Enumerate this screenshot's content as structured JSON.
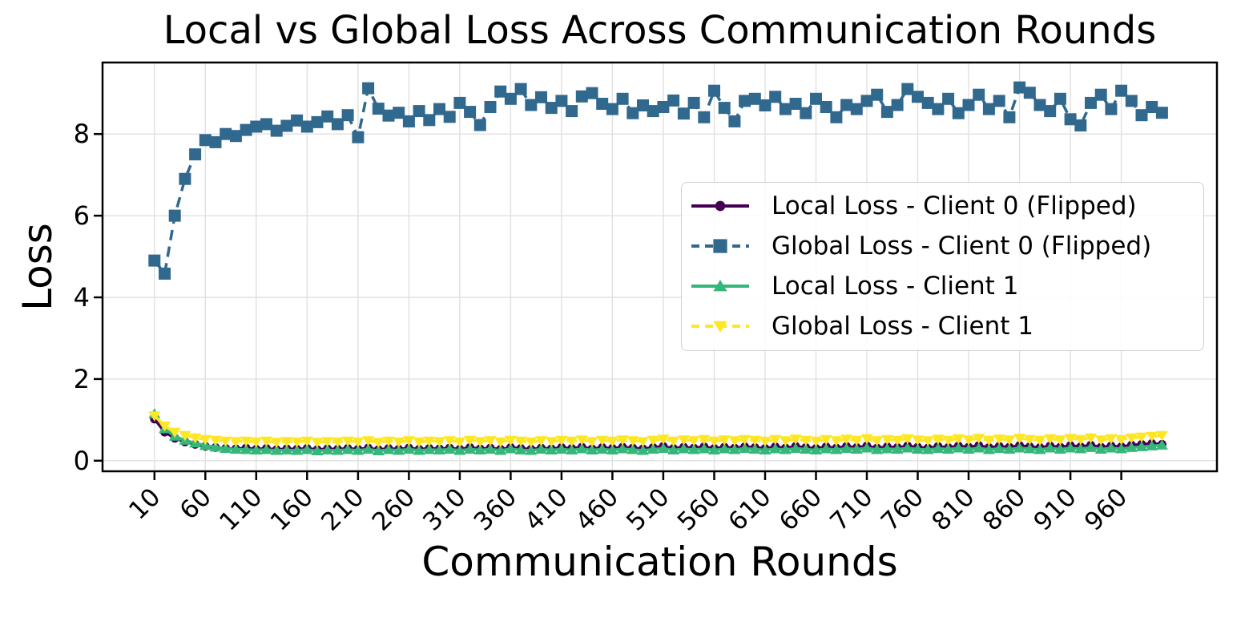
{
  "chart_data": {
    "type": "line",
    "title": "Local vs Global Loss Across Communication Rounds",
    "xlabel": "Communication Rounds",
    "ylabel": "Loss",
    "grid": true,
    "legend_position": "center right",
    "xlim": [
      -41,
      1054
    ],
    "ylim": [
      -0.26,
      9.75
    ],
    "x_ticks": [
      10,
      60,
      110,
      160,
      210,
      260,
      310,
      360,
      410,
      460,
      510,
      560,
      610,
      660,
      710,
      760,
      810,
      860,
      910,
      960
    ],
    "y_ticks": [
      0,
      2,
      4,
      6,
      8
    ],
    "axis_color": "#000000",
    "grid_color": "#e0e0e0",
    "x": [
      10,
      20,
      30,
      40,
      50,
      60,
      70,
      80,
      90,
      100,
      110,
      120,
      130,
      140,
      150,
      160,
      170,
      180,
      190,
      200,
      210,
      220,
      230,
      240,
      250,
      260,
      270,
      280,
      290,
      300,
      310,
      320,
      330,
      340,
      350,
      360,
      370,
      380,
      390,
      400,
      410,
      420,
      430,
      440,
      450,
      460,
      470,
      480,
      490,
      500,
      510,
      520,
      530,
      540,
      550,
      560,
      570,
      580,
      590,
      600,
      610,
      620,
      630,
      640,
      650,
      660,
      670,
      680,
      690,
      700,
      710,
      720,
      730,
      740,
      750,
      760,
      770,
      780,
      790,
      800,
      810,
      820,
      830,
      840,
      850,
      860,
      870,
      880,
      890,
      900,
      910,
      920,
      930,
      940,
      950,
      960,
      970,
      980,
      990,
      1000
    ],
    "series": [
      {
        "name": "Local Loss - Client 0 (Flipped)",
        "color": "#440154",
        "line_style": "solid",
        "marker": "circle",
        "values": [
          1.02,
          0.7,
          0.55,
          0.46,
          0.4,
          0.35,
          0.32,
          0.3,
          0.29,
          0.31,
          0.28,
          0.3,
          0.27,
          0.29,
          0.28,
          0.3,
          0.27,
          0.29,
          0.28,
          0.3,
          0.28,
          0.31,
          0.27,
          0.3,
          0.28,
          0.31,
          0.28,
          0.3,
          0.29,
          0.31,
          0.28,
          0.32,
          0.29,
          0.31,
          0.28,
          0.32,
          0.3,
          0.28,
          0.31,
          0.29,
          0.32,
          0.3,
          0.33,
          0.29,
          0.32,
          0.3,
          0.33,
          0.31,
          0.29,
          0.32,
          0.35,
          0.3,
          0.33,
          0.31,
          0.34,
          0.3,
          0.33,
          0.31,
          0.34,
          0.32,
          0.3,
          0.34,
          0.31,
          0.35,
          0.32,
          0.3,
          0.34,
          0.31,
          0.35,
          0.32,
          0.36,
          0.31,
          0.34,
          0.32,
          0.36,
          0.33,
          0.31,
          0.35,
          0.32,
          0.36,
          0.33,
          0.37,
          0.32,
          0.35,
          0.33,
          0.37,
          0.34,
          0.32,
          0.36,
          0.33,
          0.37,
          0.34,
          0.38,
          0.33,
          0.36,
          0.34,
          0.38,
          0.4,
          0.42,
          0.4
        ]
      },
      {
        "name": "Global Loss - Client 0 (Flipped)",
        "color": "#31688e",
        "line_style": "dashed",
        "marker": "square",
        "values": [
          4.9,
          4.58,
          6.0,
          6.9,
          7.5,
          7.85,
          7.8,
          8.0,
          7.95,
          8.1,
          8.18,
          8.24,
          8.08,
          8.2,
          8.33,
          8.18,
          8.29,
          8.43,
          8.24,
          8.46,
          7.92,
          9.12,
          8.62,
          8.45,
          8.52,
          8.31,
          8.56,
          8.34,
          8.61,
          8.42,
          8.76,
          8.54,
          8.22,
          8.66,
          9.04,
          8.86,
          9.1,
          8.71,
          8.9,
          8.64,
          8.81,
          8.56,
          8.92,
          9.0,
          8.74,
          8.61,
          8.86,
          8.51,
          8.7,
          8.56,
          8.66,
          8.82,
          8.5,
          8.76,
          8.41,
          9.06,
          8.64,
          8.31,
          8.81,
          8.86,
          8.7,
          8.91,
          8.61,
          8.74,
          8.51,
          8.86,
          8.66,
          8.41,
          8.71,
          8.61,
          8.81,
          8.96,
          8.54,
          8.71,
          9.1,
          8.91,
          8.76,
          8.61,
          8.86,
          8.51,
          8.71,
          8.96,
          8.61,
          8.81,
          8.41,
          9.14,
          9.01,
          8.71,
          8.56,
          8.86,
          8.36,
          8.21,
          8.76,
          8.96,
          8.61,
          9.06,
          8.81,
          8.46,
          8.66,
          8.52
        ]
      },
      {
        "name": "Local Loss - Client 1",
        "color": "#35b779",
        "line_style": "solid",
        "marker": "triangle-up",
        "values": [
          1.15,
          0.78,
          0.6,
          0.5,
          0.43,
          0.37,
          0.33,
          0.3,
          0.28,
          0.27,
          0.26,
          0.27,
          0.25,
          0.26,
          0.25,
          0.27,
          0.24,
          0.26,
          0.25,
          0.27,
          0.25,
          0.28,
          0.24,
          0.27,
          0.25,
          0.28,
          0.25,
          0.27,
          0.26,
          0.28,
          0.25,
          0.28,
          0.26,
          0.28,
          0.25,
          0.29,
          0.26,
          0.25,
          0.28,
          0.26,
          0.28,
          0.26,
          0.29,
          0.26,
          0.28,
          0.26,
          0.29,
          0.27,
          0.25,
          0.28,
          0.3,
          0.26,
          0.29,
          0.27,
          0.29,
          0.26,
          0.29,
          0.27,
          0.3,
          0.28,
          0.26,
          0.29,
          0.27,
          0.3,
          0.28,
          0.26,
          0.29,
          0.27,
          0.3,
          0.28,
          0.31,
          0.27,
          0.29,
          0.28,
          0.31,
          0.28,
          0.27,
          0.3,
          0.28,
          0.31,
          0.28,
          0.31,
          0.27,
          0.3,
          0.28,
          0.31,
          0.29,
          0.27,
          0.31,
          0.28,
          0.31,
          0.29,
          0.32,
          0.28,
          0.31,
          0.29,
          0.32,
          0.34,
          0.36,
          0.38
        ]
      },
      {
        "name": "Global Loss - Client 1",
        "color": "#fde725",
        "line_style": "dashed",
        "marker": "triangle-down",
        "values": [
          1.1,
          0.85,
          0.7,
          0.62,
          0.56,
          0.52,
          0.5,
          0.48,
          0.47,
          0.48,
          0.46,
          0.48,
          0.45,
          0.47,
          0.46,
          0.48,
          0.45,
          0.47,
          0.46,
          0.48,
          0.46,
          0.49,
          0.45,
          0.48,
          0.46,
          0.49,
          0.46,
          0.48,
          0.47,
          0.49,
          0.46,
          0.5,
          0.47,
          0.49,
          0.46,
          0.5,
          0.48,
          0.46,
          0.49,
          0.47,
          0.5,
          0.48,
          0.51,
          0.47,
          0.5,
          0.48,
          0.51,
          0.49,
          0.47,
          0.5,
          0.53,
          0.48,
          0.51,
          0.49,
          0.52,
          0.48,
          0.51,
          0.49,
          0.52,
          0.5,
          0.48,
          0.52,
          0.49,
          0.53,
          0.5,
          0.48,
          0.52,
          0.49,
          0.53,
          0.5,
          0.54,
          0.49,
          0.52,
          0.5,
          0.54,
          0.51,
          0.49,
          0.53,
          0.5,
          0.54,
          0.51,
          0.55,
          0.5,
          0.53,
          0.51,
          0.55,
          0.52,
          0.5,
          0.54,
          0.51,
          0.55,
          0.52,
          0.56,
          0.51,
          0.54,
          0.52,
          0.56,
          0.58,
          0.6,
          0.62
        ]
      }
    ]
  }
}
